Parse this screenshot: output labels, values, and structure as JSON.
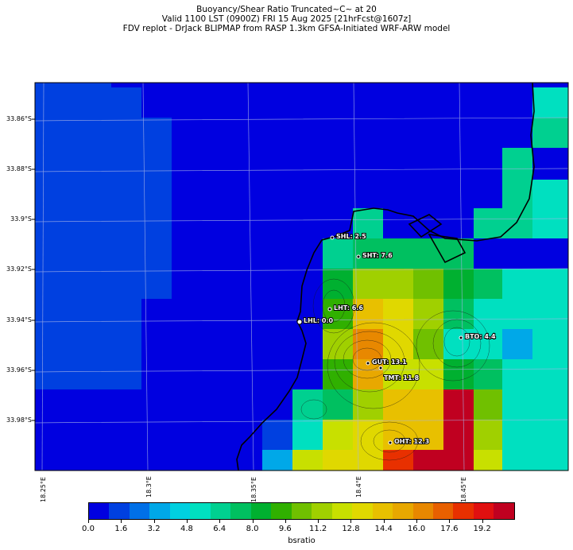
{
  "title": {
    "line1": "Buoyancy/Shear Ratio Truncated~C~    at 20",
    "line2": "Valid 1100 LST (0900Z) FRI 15 Aug 2025 [21hrFcst@1607z]",
    "line3": "FDV replot - DrJack BLIPMAP from RASP 1.3km GFSA-Initiated WRF-ARW model"
  },
  "axes": {
    "lat_labels": [
      "33.86°S",
      "33.88°S",
      "33.9°S",
      "33.92°S",
      "33.94°S",
      "33.96°S",
      "33.98°S"
    ],
    "lon_labels": [
      "18.25°E",
      "18.3°E",
      "18.35°E",
      "18.4°E",
      "18.45°E"
    ]
  },
  "colorbar": {
    "label": "bsratio",
    "ticks": [
      "0.0",
      "1.6",
      "3.2",
      "4.8",
      "6.4",
      "8.0",
      "9.6",
      "11.2",
      "12.8",
      "14.4",
      "16.0",
      "17.6",
      "19.2"
    ],
    "colors": [
      "#0000e0",
      "#0040e0",
      "#0070e8",
      "#00a8e8",
      "#00d0e0",
      "#00e0c0",
      "#00d090",
      "#00c060",
      "#00b030",
      "#30b000",
      "#70c000",
      "#a0d000",
      "#c8e000",
      "#e0d800",
      "#e8c000",
      "#e8a800",
      "#e88800",
      "#e86000",
      "#e83000",
      "#e01010",
      "#c00020"
    ]
  },
  "stations": [
    {
      "label": "SHL: 2.5"
    },
    {
      "label": "SHT: 7.6"
    },
    {
      "label": "LHT: 6.6"
    },
    {
      "label": "LHL: 0.0"
    },
    {
      "label": "BTO: 4.4"
    },
    {
      "label": "GUT: 13.1"
    },
    {
      "label": "TMT: 11.8"
    },
    {
      "label": "OHT: 12.3"
    }
  ]
}
